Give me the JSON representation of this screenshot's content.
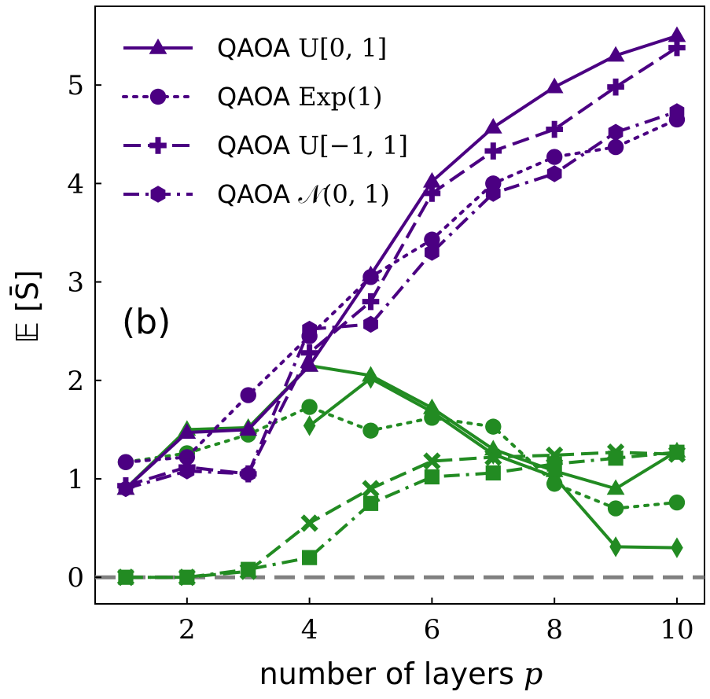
{
  "chart_data": {
    "type": "line",
    "panel_label": "(b)",
    "xlabel": "number of layers",
    "xlabel_symbol": "p",
    "ylabel": "𝔼 [S̄]",
    "xlim": [
      0.5,
      10.45
    ],
    "ylim": [
      -0.27,
      5.8
    ],
    "xticks": [
      2,
      4,
      6,
      8,
      10
    ],
    "yticks": [
      0,
      1,
      2,
      3,
      4,
      5
    ],
    "grid": false,
    "legend_position": "top-left",
    "reference_line": {
      "y": 0,
      "color": "#808080",
      "style": "dashed"
    },
    "x": [
      1,
      2,
      3,
      4,
      5,
      6,
      7,
      8,
      9,
      10
    ],
    "series": [
      {
        "name": "QAOA U[0, 1]",
        "legend_prefix": "QAOA",
        "legend_math": "U[0, 1]",
        "group": "purple",
        "color": "#4b0082",
        "marker": "triangle",
        "linestyle": "solid",
        "values": [
          0.9,
          1.47,
          1.5,
          2.15,
          3.07,
          4.02,
          4.57,
          4.98,
          5.3,
          5.5
        ]
      },
      {
        "name": "QAOA Exp(1)",
        "legend_prefix": "QAOA",
        "legend_math": "Exp(1)",
        "group": "purple",
        "color": "#4b0082",
        "marker": "circle",
        "linestyle": "dotted",
        "values": [
          1.17,
          1.22,
          1.85,
          2.45,
          3.05,
          3.43,
          4.0,
          4.27,
          4.37,
          4.65
        ]
      },
      {
        "name": "QAOA U[−1, 1]",
        "legend_prefix": "QAOA",
        "legend_math": "U[−1, 1]",
        "group": "purple",
        "color": "#4b0082",
        "marker": "plus",
        "linestyle": "dashed",
        "values": [
          0.93,
          1.12,
          1.05,
          2.28,
          2.8,
          3.9,
          4.33,
          4.55,
          4.98,
          5.38
        ]
      },
      {
        "name": "QAOA 𝒩(0, 1)",
        "legend_prefix": "QAOA",
        "legend_math": "𝒩(0, 1)",
        "group": "purple",
        "color": "#4b0082",
        "marker": "hexagon",
        "linestyle": "dashdot",
        "values": [
          0.9,
          1.08,
          1.05,
          2.52,
          2.57,
          3.3,
          3.9,
          4.1,
          4.52,
          4.73
        ]
      },
      {
        "group": "green",
        "color": "#228b22",
        "marker": "triangle",
        "linestyle": "solid",
        "values": [
          0.9,
          1.5,
          1.52,
          2.15,
          2.05,
          1.72,
          1.3,
          1.08,
          0.9,
          1.28
        ]
      },
      {
        "group": "green",
        "color": "#228b22",
        "marker": "diamond",
        "linestyle": "solid",
        "values": [
          null,
          null,
          null,
          1.54,
          2.02,
          1.68,
          1.25,
          1.02,
          0.31,
          0.3
        ]
      },
      {
        "group": "green",
        "color": "#228b22",
        "marker": "circle",
        "linestyle": "dotted",
        "values": [
          1.17,
          1.26,
          1.45,
          1.73,
          1.49,
          1.62,
          1.53,
          0.95,
          0.7,
          0.76
        ]
      },
      {
        "group": "green",
        "color": "#228b22",
        "marker": "x",
        "linestyle": "dashed",
        "values": [
          0.0,
          0.0,
          0.06,
          0.55,
          0.9,
          1.18,
          1.22,
          1.24,
          1.27,
          1.25
        ]
      },
      {
        "group": "green",
        "color": "#228b22",
        "marker": "square",
        "linestyle": "dashdot",
        "values": [
          0.0,
          0.0,
          0.08,
          0.2,
          0.75,
          1.02,
          1.06,
          1.15,
          1.21,
          1.27
        ]
      }
    ]
  }
}
